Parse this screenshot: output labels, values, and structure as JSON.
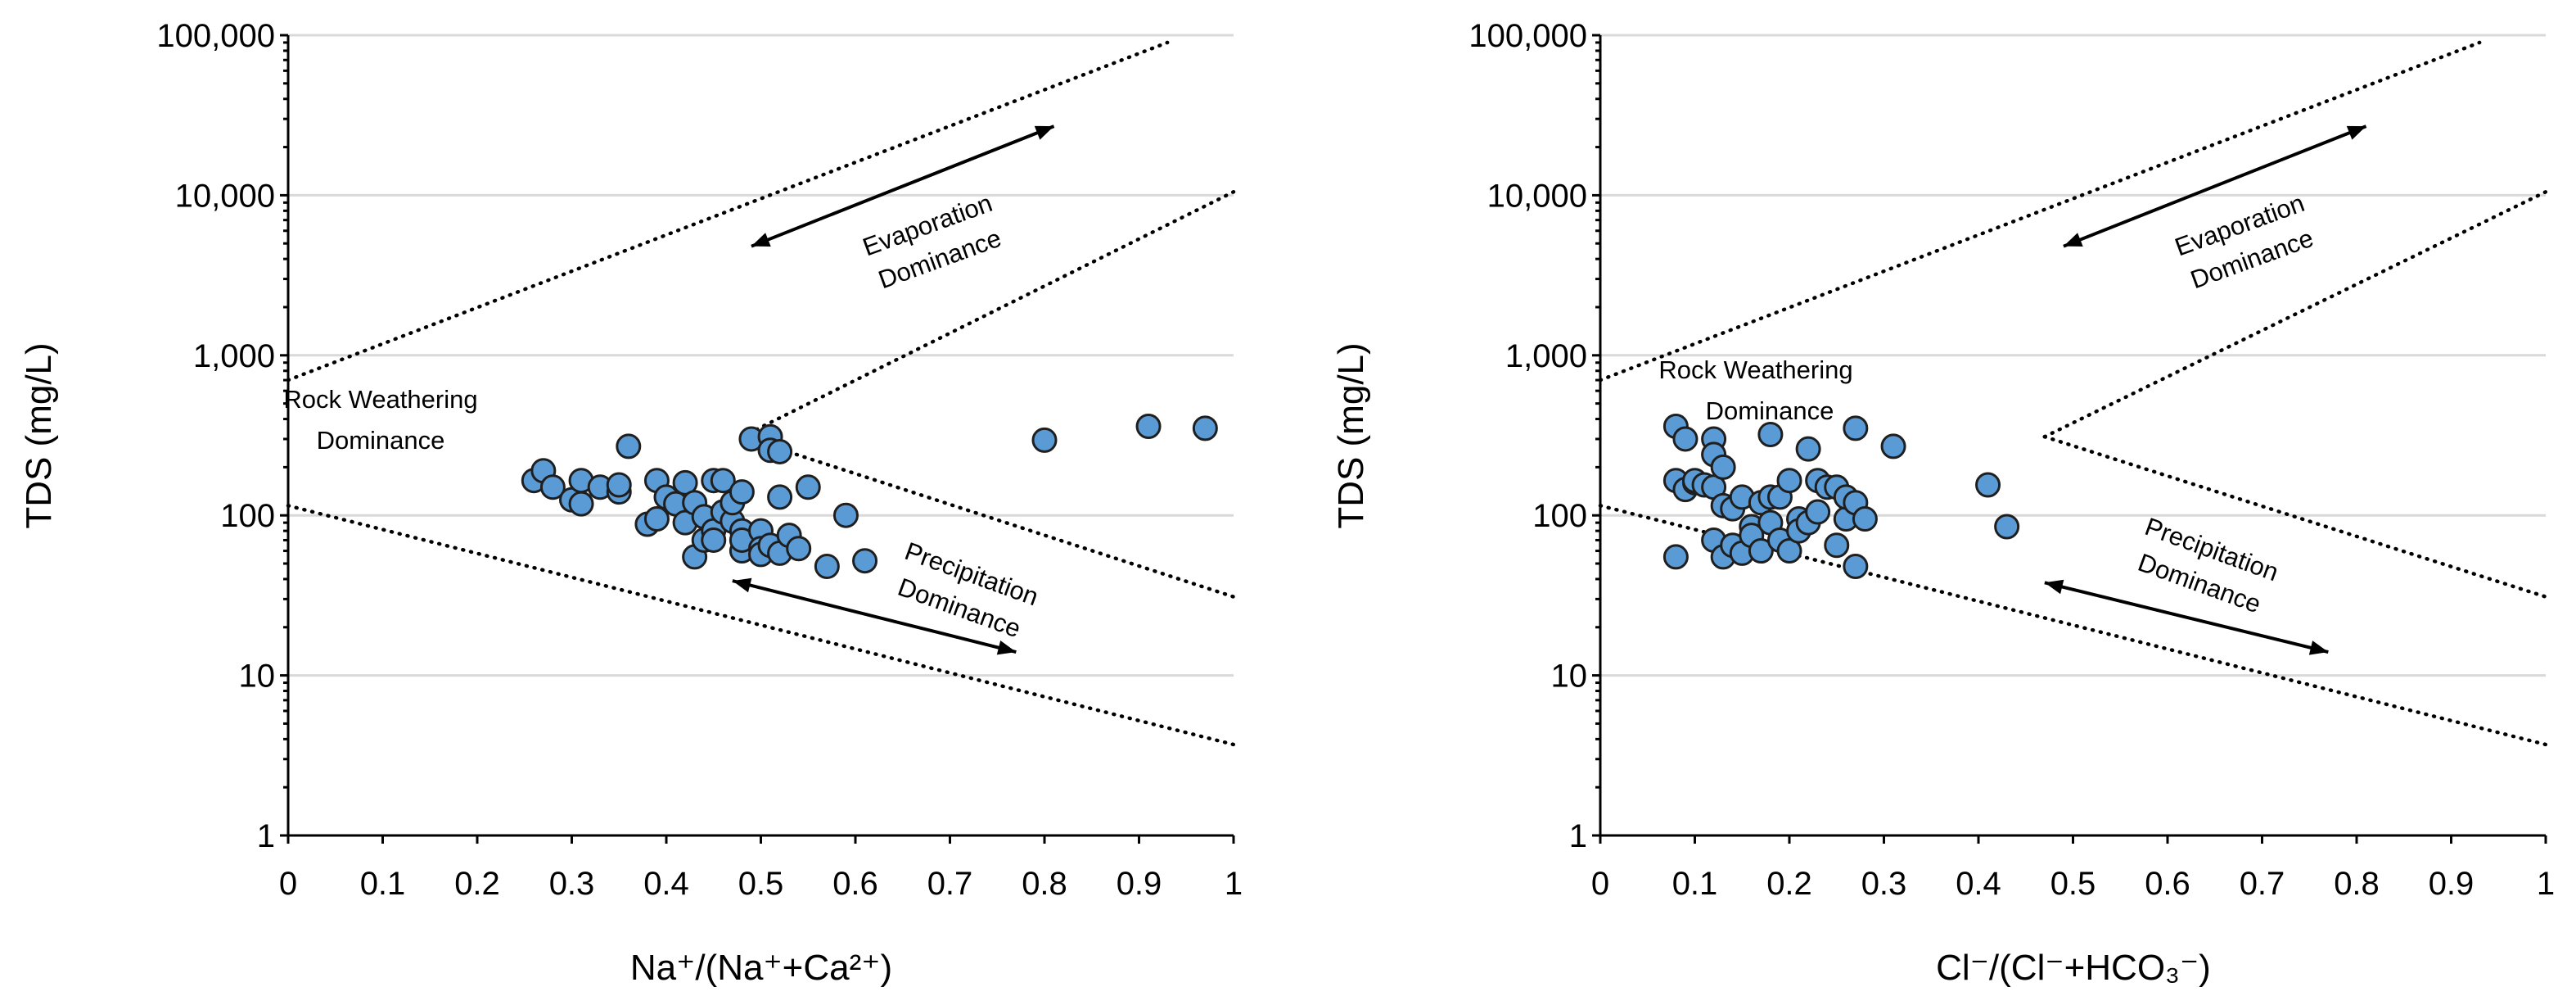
{
  "marker_color": "#5b9bd5",
  "chart_data": [
    {
      "type": "scatter",
      "title": "",
      "xlabel": "Na⁺/(Na⁺+Ca²⁺)",
      "ylabel": "TDS (mg/L)",
      "xlim": [
        0,
        1
      ],
      "ylim": [
        1,
        100000
      ],
      "yscale": "log",
      "grid": true,
      "xticks": [
        "0",
        "0.1",
        "0.2",
        "0.3",
        "0.4",
        "0.5",
        "0.6",
        "0.7",
        "0.8",
        "0.9",
        "1"
      ],
      "yticks": [
        "1",
        "10",
        "100",
        "1,000",
        "10,000",
        "100,000"
      ],
      "labels": {
        "rock": [
          "Rock Weathering",
          "Dominance"
        ],
        "evap": [
          "Evaporation",
          "Dominance"
        ],
        "precip": [
          "Precipitation",
          "Dominance"
        ]
      },
      "boundaries": [
        [
          [
            0.0,
            700
          ],
          [
            0.93,
            90000
          ]
        ],
        [
          [
            0.48,
            310
          ],
          [
            1.0,
            10500
          ]
        ],
        [
          [
            0.48,
            310
          ],
          [
            1.0,
            31
          ]
        ],
        [
          [
            0.0,
            115
          ],
          [
            1.0,
            3.7
          ]
        ]
      ],
      "arrows": [
        {
          "from": [
            0.49,
            4800
          ],
          "to": [
            0.81,
            27000
          ]
        },
        {
          "from": [
            0.47,
            39
          ],
          "to": [
            0.77,
            14
          ]
        }
      ],
      "points": [
        {
          "x": 0.26,
          "y": 165
        },
        {
          "x": 0.27,
          "y": 190
        },
        {
          "x": 0.28,
          "y": 150
        },
        {
          "x": 0.3,
          "y": 125
        },
        {
          "x": 0.31,
          "y": 165
        },
        {
          "x": 0.31,
          "y": 118
        },
        {
          "x": 0.33,
          "y": 150
        },
        {
          "x": 0.35,
          "y": 140
        },
        {
          "x": 0.35,
          "y": 155
        },
        {
          "x": 0.36,
          "y": 270
        },
        {
          "x": 0.38,
          "y": 88
        },
        {
          "x": 0.39,
          "y": 95
        },
        {
          "x": 0.39,
          "y": 165
        },
        {
          "x": 0.4,
          "y": 130
        },
        {
          "x": 0.41,
          "y": 118
        },
        {
          "x": 0.42,
          "y": 160
        },
        {
          "x": 0.42,
          "y": 90
        },
        {
          "x": 0.43,
          "y": 55
        },
        {
          "x": 0.43,
          "y": 120
        },
        {
          "x": 0.44,
          "y": 70
        },
        {
          "x": 0.44,
          "y": 98
        },
        {
          "x": 0.45,
          "y": 165
        },
        {
          "x": 0.45,
          "y": 80
        },
        {
          "x": 0.45,
          "y": 70
        },
        {
          "x": 0.46,
          "y": 165
        },
        {
          "x": 0.46,
          "y": 105
        },
        {
          "x": 0.47,
          "y": 92
        },
        {
          "x": 0.47,
          "y": 120
        },
        {
          "x": 0.48,
          "y": 60
        },
        {
          "x": 0.48,
          "y": 80
        },
        {
          "x": 0.48,
          "y": 70
        },
        {
          "x": 0.48,
          "y": 140
        },
        {
          "x": 0.49,
          "y": 300
        },
        {
          "x": 0.5,
          "y": 80
        },
        {
          "x": 0.5,
          "y": 62
        },
        {
          "x": 0.5,
          "y": 57
        },
        {
          "x": 0.51,
          "y": 310
        },
        {
          "x": 0.51,
          "y": 255
        },
        {
          "x": 0.51,
          "y": 65
        },
        {
          "x": 0.52,
          "y": 250
        },
        {
          "x": 0.52,
          "y": 130
        },
        {
          "x": 0.52,
          "y": 58
        },
        {
          "x": 0.53,
          "y": 75
        },
        {
          "x": 0.54,
          "y": 62
        },
        {
          "x": 0.55,
          "y": 150
        },
        {
          "x": 0.57,
          "y": 48
        },
        {
          "x": 0.59,
          "y": 100
        },
        {
          "x": 0.61,
          "y": 52
        },
        {
          "x": 0.8,
          "y": 295
        },
        {
          "x": 0.91,
          "y": 360
        },
        {
          "x": 0.97,
          "y": 350
        }
      ]
    },
    {
      "type": "scatter",
      "title": "",
      "xlabel": "Cl⁻/(Cl⁻+HCO₃⁻)",
      "ylabel": "TDS (mg/L)",
      "xlim": [
        0,
        1
      ],
      "ylim": [
        1,
        100000
      ],
      "yscale": "log",
      "grid": true,
      "xticks": [
        "0",
        "0.1",
        "0.2",
        "0.3",
        "0.4",
        "0.5",
        "0.6",
        "0.7",
        "0.8",
        "0.9",
        "1"
      ],
      "yticks": [
        "1",
        "10",
        "100",
        "1,000",
        "10,000",
        "100,000"
      ],
      "labels": {
        "rock": [
          "Rock Weathering",
          "Dominance"
        ],
        "evap": [
          "Evaporation",
          "Dominance"
        ],
        "precip": [
          "Precipitation",
          "Dominance"
        ]
      },
      "boundaries": [
        [
          [
            0.0,
            700
          ],
          [
            0.93,
            90000
          ]
        ],
        [
          [
            0.47,
            310
          ],
          [
            1.0,
            10500
          ]
        ],
        [
          [
            0.47,
            310
          ],
          [
            1.0,
            31
          ]
        ],
        [
          [
            0.0,
            115
          ],
          [
            1.0,
            3.7
          ]
        ]
      ],
      "arrows": [
        {
          "from": [
            0.49,
            4800
          ],
          "to": [
            0.81,
            27000
          ]
        },
        {
          "from": [
            0.47,
            38
          ],
          "to": [
            0.77,
            14
          ]
        }
      ],
      "points": [
        {
          "x": 0.08,
          "y": 360
        },
        {
          "x": 0.09,
          "y": 300
        },
        {
          "x": 0.08,
          "y": 165
        },
        {
          "x": 0.08,
          "y": 55
        },
        {
          "x": 0.09,
          "y": 145
        },
        {
          "x": 0.1,
          "y": 160
        },
        {
          "x": 0.1,
          "y": 165
        },
        {
          "x": 0.11,
          "y": 155
        },
        {
          "x": 0.12,
          "y": 70
        },
        {
          "x": 0.12,
          "y": 150
        },
        {
          "x": 0.12,
          "y": 300
        },
        {
          "x": 0.12,
          "y": 240
        },
        {
          "x": 0.13,
          "y": 200
        },
        {
          "x": 0.13,
          "y": 55
        },
        {
          "x": 0.13,
          "y": 115
        },
        {
          "x": 0.14,
          "y": 65
        },
        {
          "x": 0.14,
          "y": 110
        },
        {
          "x": 0.15,
          "y": 130
        },
        {
          "x": 0.15,
          "y": 58
        },
        {
          "x": 0.16,
          "y": 85
        },
        {
          "x": 0.16,
          "y": 75
        },
        {
          "x": 0.17,
          "y": 120
        },
        {
          "x": 0.17,
          "y": 60
        },
        {
          "x": 0.18,
          "y": 320
        },
        {
          "x": 0.18,
          "y": 130
        },
        {
          "x": 0.18,
          "y": 90
        },
        {
          "x": 0.19,
          "y": 70
        },
        {
          "x": 0.19,
          "y": 130
        },
        {
          "x": 0.2,
          "y": 165
        },
        {
          "x": 0.2,
          "y": 60
        },
        {
          "x": 0.21,
          "y": 95
        },
        {
          "x": 0.21,
          "y": 80
        },
        {
          "x": 0.22,
          "y": 260
        },
        {
          "x": 0.22,
          "y": 90
        },
        {
          "x": 0.23,
          "y": 165
        },
        {
          "x": 0.23,
          "y": 105
        },
        {
          "x": 0.24,
          "y": 150
        },
        {
          "x": 0.25,
          "y": 150
        },
        {
          "x": 0.25,
          "y": 65
        },
        {
          "x": 0.26,
          "y": 95
        },
        {
          "x": 0.26,
          "y": 130
        },
        {
          "x": 0.27,
          "y": 350
        },
        {
          "x": 0.27,
          "y": 120
        },
        {
          "x": 0.27,
          "y": 48
        },
        {
          "x": 0.28,
          "y": 95
        },
        {
          "x": 0.31,
          "y": 270
        },
        {
          "x": 0.41,
          "y": 155
        },
        {
          "x": 0.43,
          "y": 85
        }
      ]
    }
  ]
}
